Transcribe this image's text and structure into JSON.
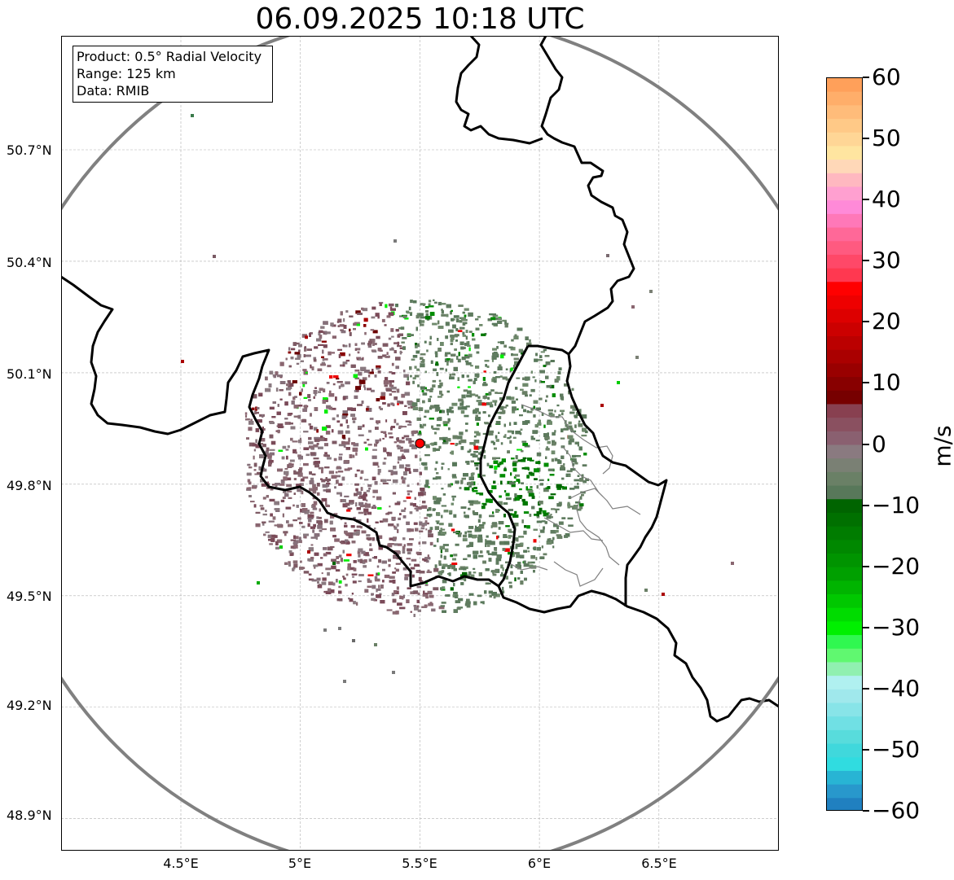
{
  "title": "06.09.2025 10:18 UTC",
  "info_box": {
    "product": "Product: 0.5° Radial Velocity",
    "range": "Range: 125 km",
    "data": "Data: RMIB"
  },
  "map": {
    "lat_labels": [
      "50.7°N",
      "50.4°N",
      "50.1°N",
      "49.8°N",
      "49.5°N",
      "49.2°N",
      "48.9°N"
    ],
    "lon_labels": [
      "4.5°E",
      "5°E",
      "5.5°E",
      "6°E",
      "6.5°E"
    ],
    "lon_range": [
      4.0,
      7.0
    ],
    "lat_range": [
      48.8,
      51.0
    ],
    "radar_site": {
      "lon": 5.5,
      "lat": 49.91
    },
    "radar_range_km": 125,
    "colors": {
      "range_ring": "#808080",
      "border": "#000000",
      "admin_border": "#808080",
      "grid": "#b0b0b0",
      "radar_marker": "#ff0000"
    }
  },
  "colorbar": {
    "label": "m/s",
    "tick_labels": [
      "60",
      "50",
      "40",
      "30",
      "20",
      "10",
      "0",
      "−10",
      "−20",
      "−30",
      "−40",
      "−50",
      "−60"
    ],
    "vmin": -60,
    "vmax": 60,
    "colors_top_to_bottom": [
      "#ffa05a",
      "#ffae6a",
      "#ffbc7a",
      "#ffc987",
      "#ffd696",
      "#ffe5a0",
      "#ffd8b8",
      "#ffb8c0",
      "#ffa0d0",
      "#ff8ad8",
      "#ff78b8",
      "#ff6898",
      "#ff5a80",
      "#ff4868",
      "#ff3850",
      "#ff0000",
      "#ee0000",
      "#dd0000",
      "#cc0000",
      "#bb0000",
      "#aa0000",
      "#990000",
      "#880000",
      "#770000",
      "#884050",
      "#8a5060",
      "#8a6070",
      "#8a7a80",
      "#7a8074",
      "#6a8066",
      "#58785a",
      "#006400",
      "#007000",
      "#007c00",
      "#008800",
      "#009400",
      "#00a000",
      "#00b400",
      "#00c800",
      "#00dc00",
      "#00f000",
      "#30f850",
      "#60f870",
      "#90f0b0",
      "#b0f0f0",
      "#a0e8ec",
      "#88e4e8",
      "#70e0e4",
      "#58dcdc",
      "#40d8dc",
      "#30dce0",
      "#28b4d4",
      "#2898cc",
      "#2080c0"
    ]
  }
}
